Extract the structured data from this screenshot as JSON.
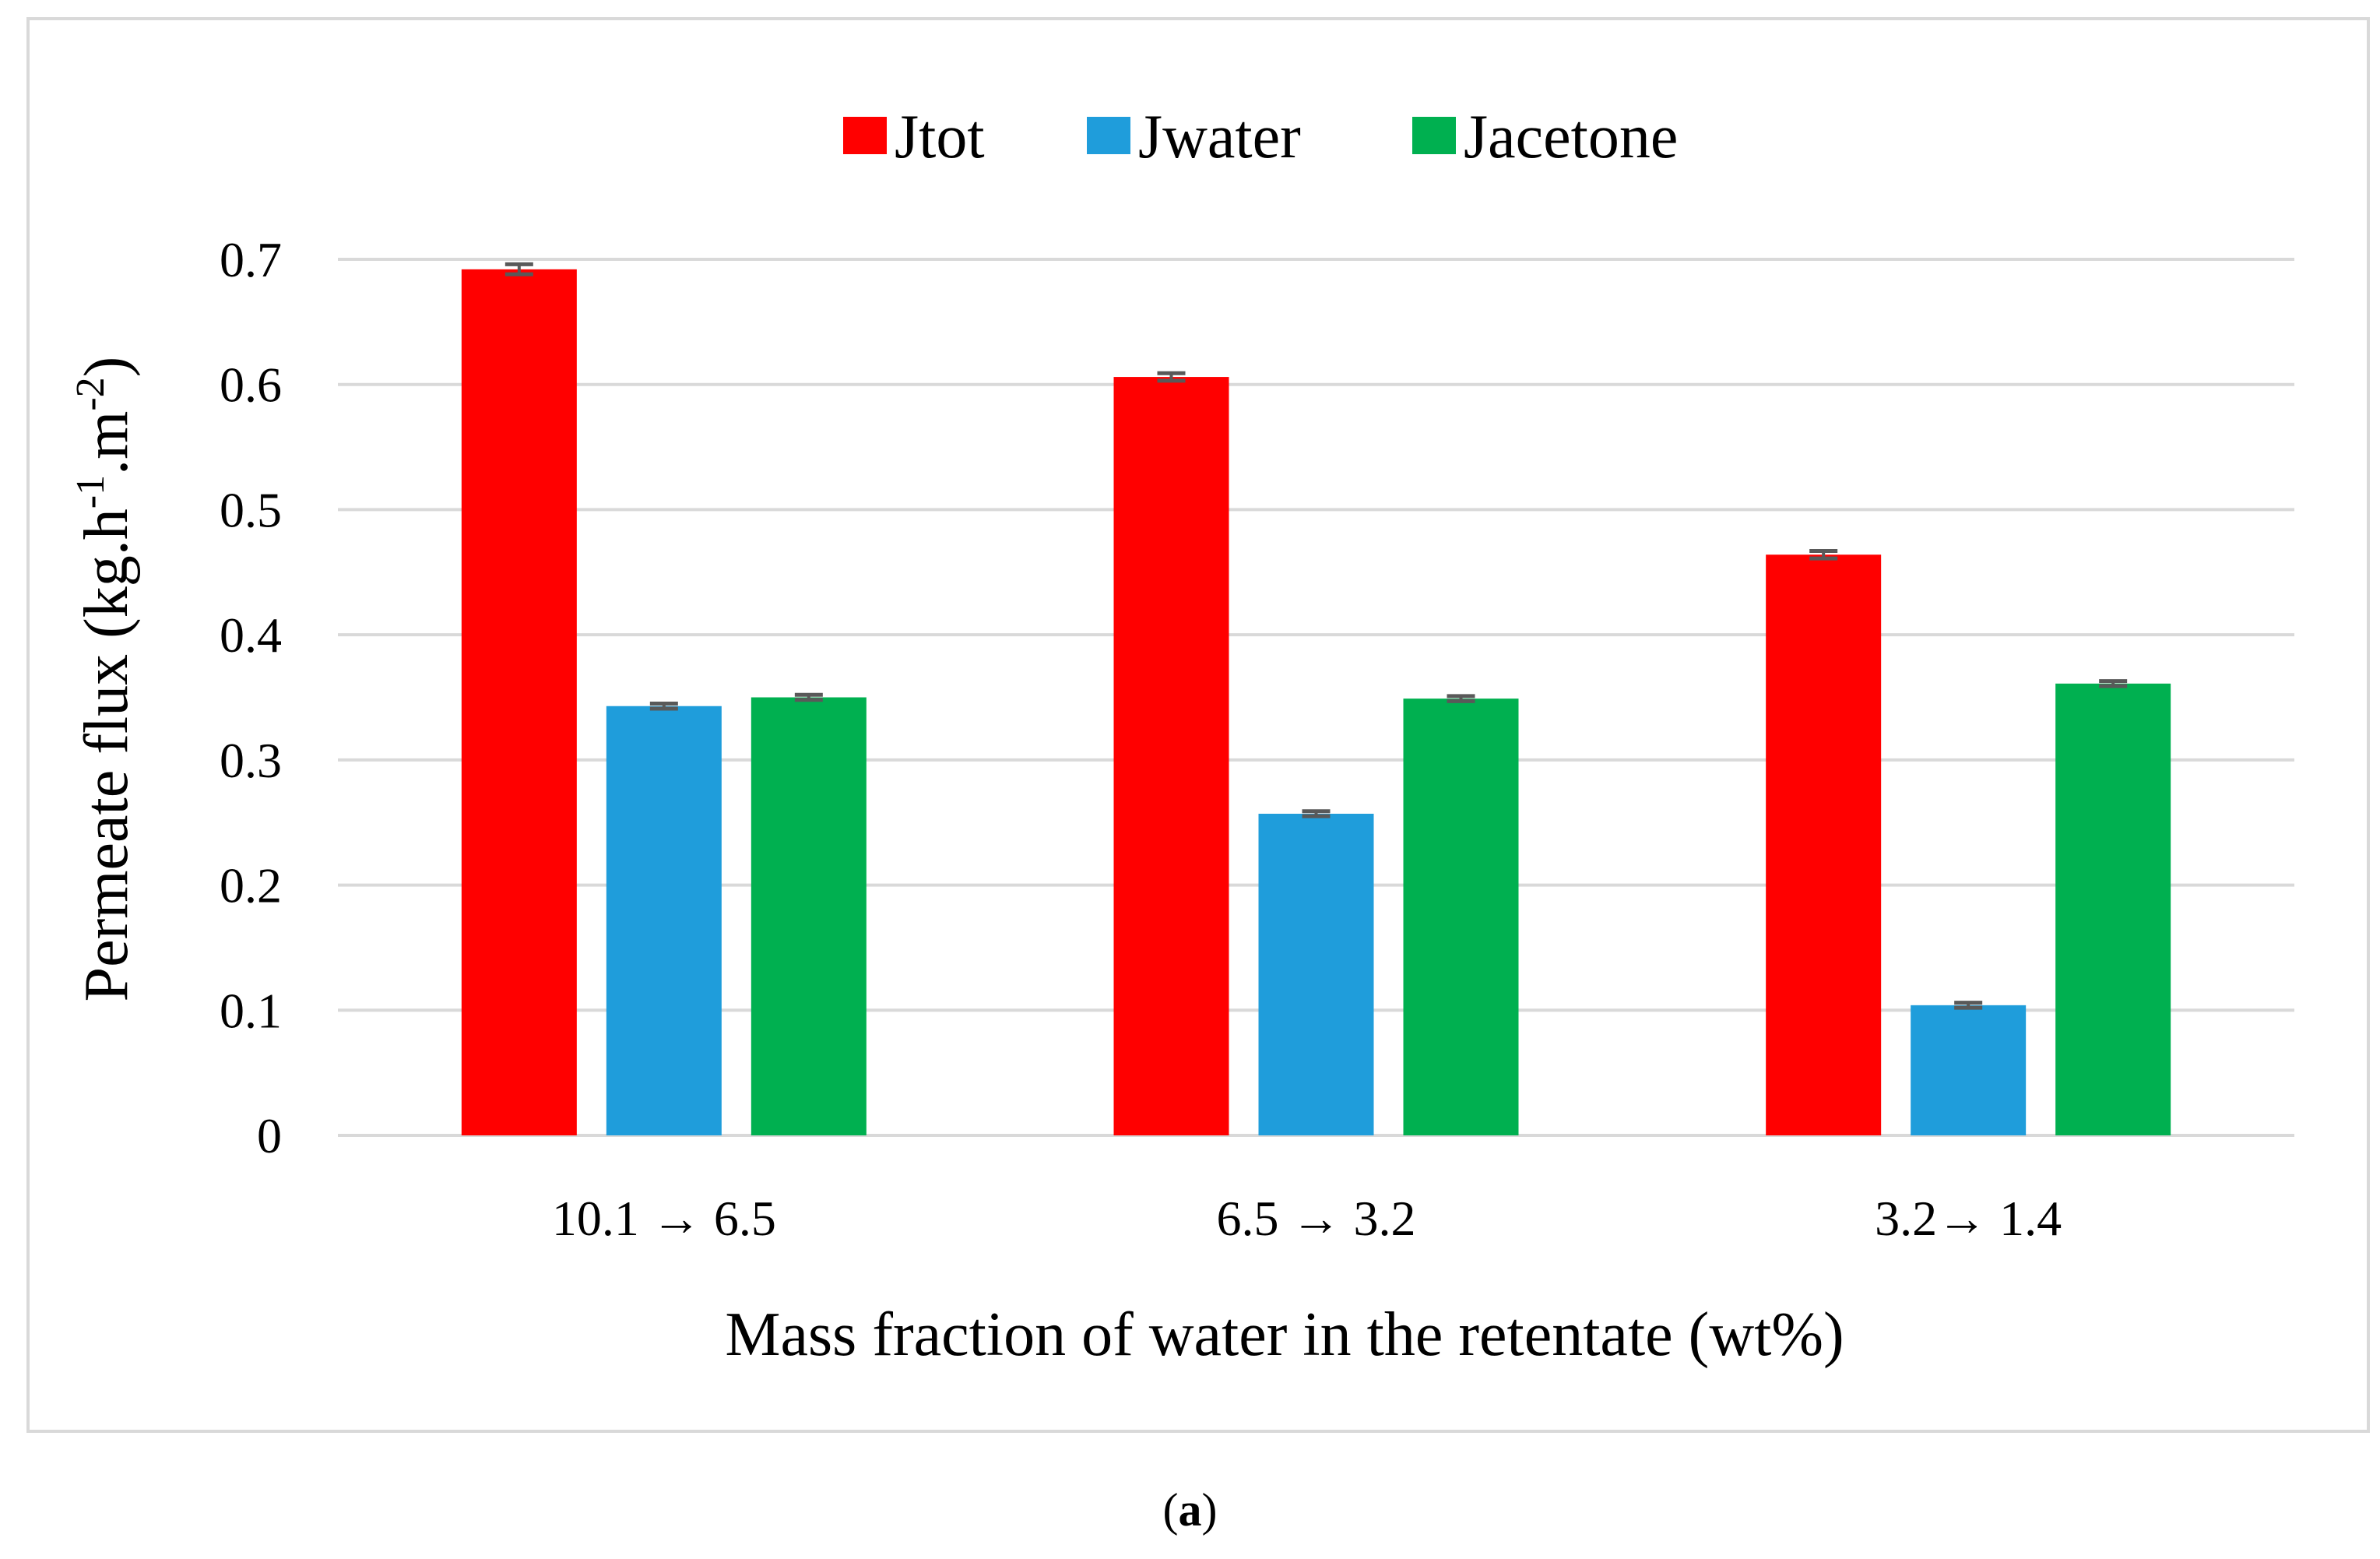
{
  "chart_data": {
    "type": "bar",
    "categories": [
      "10.1 → 6.5",
      "6.5 → 3.2",
      "3.2→ 1.4"
    ],
    "series": [
      {
        "name": "Jtot",
        "color": "#ff0000",
        "values": [
          0.692,
          0.606,
          0.464
        ],
        "errors": [
          0.004,
          0.003,
          0.003
        ]
      },
      {
        "name": "Jwater",
        "color": "#1f9ddb",
        "values": [
          0.343,
          0.257,
          0.104
        ],
        "errors": [
          0.002,
          0.002,
          0.002
        ]
      },
      {
        "name": "Jacetone",
        "color": "#00b050",
        "values": [
          0.35,
          0.349,
          0.361
        ],
        "errors": [
          0.002,
          0.002,
          0.002
        ]
      }
    ],
    "ylim": [
      0,
      0.7
    ],
    "yticks": [
      "0",
      "0.1",
      "0.2",
      "0.3",
      "0.4",
      "0.5",
      "0.6",
      "0.7"
    ],
    "xlabel": "Mass fraction of water in the retentate (wt%)",
    "ylabel_parts": {
      "base": "Permeate flux (kg.h",
      "sup1": "-1",
      "mid": ".m",
      "sup2": "-2",
      "end": ")"
    },
    "legend_position": "top-center",
    "grid": true,
    "grid_color": "#d9d9d9",
    "error_bar_color": "#595959"
  },
  "caption": {
    "open": "(",
    "letter": "a",
    "close": ")"
  }
}
